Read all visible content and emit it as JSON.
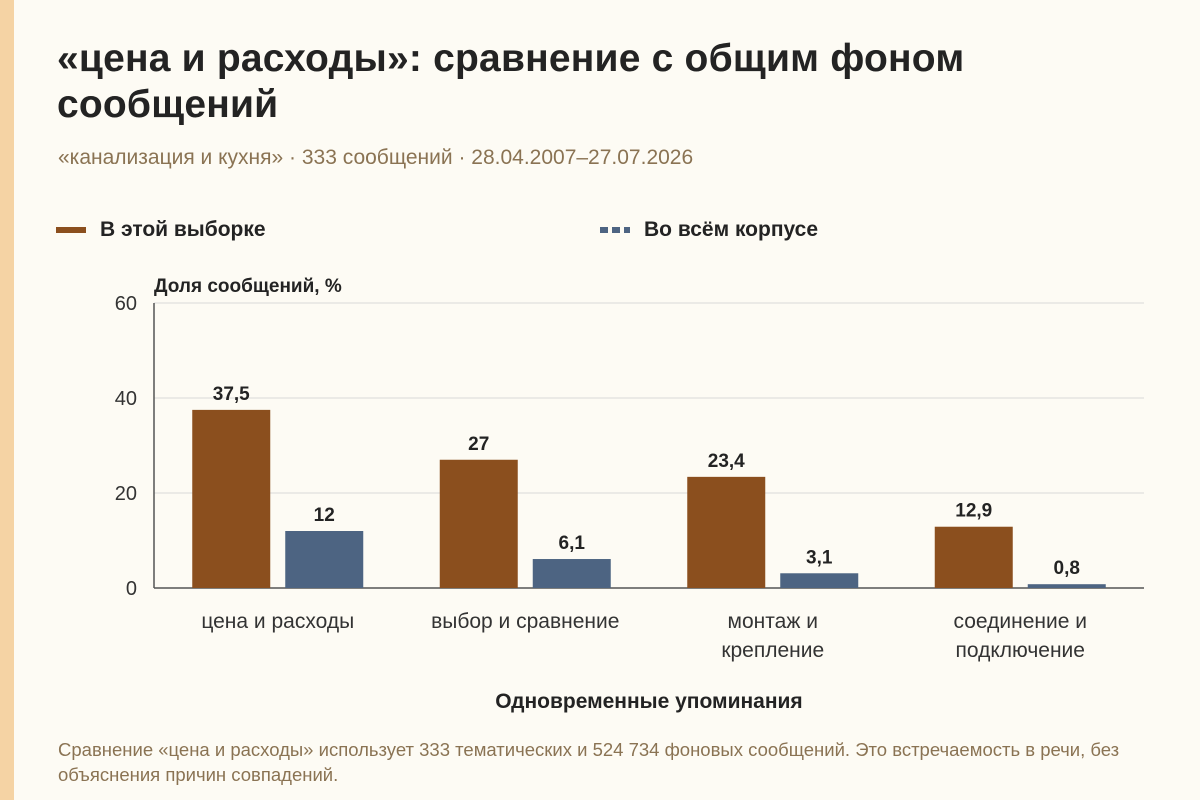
{
  "title": "«цена и расходы»: сравнение с общим фоном сообщений",
  "subtitle": "«канализация и кухня» · 333 сообщений · 28.04.2007–27.07.2026",
  "footnote": "Сравнение «цена и расходы» использует 333 тематических и 524 734 фоновых сообщений. Это встречаемость в речи, без объяснения причин совпадений.",
  "colors": {
    "sample": "#8b4f1e",
    "corpus": "#4d6482",
    "accent": "#f5d3a4",
    "background": "#fdfbf4"
  },
  "chart_data": {
    "type": "bar",
    "title": "«цена и расходы»: сравнение с общим фоном сообщений",
    "xlabel": "Одновременные упоминания",
    "ylabel": "Доля сообщений, %",
    "ylim": [
      0,
      60
    ],
    "yticks": [
      0,
      20,
      40,
      60
    ],
    "grid": true,
    "legend_position": "top",
    "categories": [
      [
        "цена и расходы"
      ],
      [
        "выбор и сравнение"
      ],
      [
        "монтаж и",
        "крепление"
      ],
      [
        "соединение и",
        "подключение"
      ]
    ],
    "series": [
      {
        "name": "В этой выборке",
        "values": [
          37.5,
          27,
          23.4,
          12.9
        ],
        "labels": [
          "37,5",
          "27",
          "23,4",
          "12,9"
        ]
      },
      {
        "name": "Во всём корпусе",
        "values": [
          12,
          6.1,
          3.1,
          0.8
        ],
        "labels": [
          "12",
          "6,1",
          "3,1",
          "0,8"
        ]
      }
    ]
  }
}
